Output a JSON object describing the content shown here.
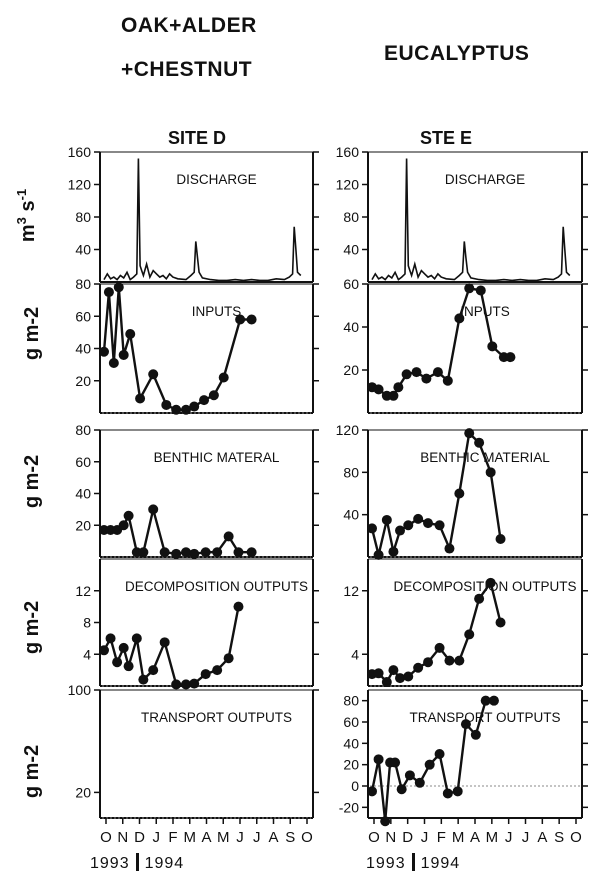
{
  "headers": {
    "left_group_line1": "OAK+ALDER",
    "left_group_line2": "+CHESTNUT",
    "right_group": "EUCALYPTUS",
    "left_site": "SITE D",
    "right_site": "STE E"
  },
  "y_axis_labels": {
    "discharge": "m",
    "discharge_sup1": "3",
    "discharge_tail": "s",
    "discharge_sup2": "-1",
    "inputs": "g m-2",
    "benthic": "g m-2",
    "decomposition": "g m-2",
    "transport": "g m-2"
  },
  "x_axis": {
    "month_labels": [
      "O",
      "N",
      "D",
      "J",
      "F",
      "M",
      "A",
      "M",
      "J",
      "J",
      "A",
      "S",
      "O"
    ],
    "year_left": "1993",
    "year_right": "1994"
  },
  "colors": {
    "line": "#111111",
    "marker": "#111111",
    "zero_line": "#888888"
  },
  "chart_data": [
    {
      "type": "line",
      "site": "D",
      "panel_label": "DISCHARGE",
      "ylim": [
        0,
        160
      ],
      "yticks": [
        40,
        80,
        120,
        160
      ],
      "unit": "m3 s-1",
      "x": [
        0,
        0.2,
        0.4,
        0.6,
        0.8,
        1.0,
        1.2,
        1.4,
        1.6,
        1.8,
        2.0,
        2.1,
        2.2,
        2.3,
        2.4,
        2.6,
        2.8,
        3.0,
        3.2,
        3.4,
        3.6,
        3.8,
        4.0,
        4.2,
        4.5,
        5.0,
        5.3,
        5.5,
        5.6,
        5.7,
        5.8,
        6.0,
        6.5,
        7.0,
        7.5,
        8.0,
        8.5,
        9.0,
        9.5,
        10.0,
        10.5,
        11.0,
        11.3,
        11.5,
        11.6,
        11.7,
        11.8,
        12.0
      ],
      "values": [
        3,
        10,
        4,
        6,
        3,
        8,
        5,
        12,
        3,
        6,
        10,
        152,
        20,
        14,
        8,
        22,
        6,
        14,
        10,
        6,
        8,
        4,
        10,
        6,
        4,
        3,
        8,
        12,
        50,
        30,
        12,
        5,
        3,
        2,
        2,
        3,
        2,
        3,
        2,
        2,
        4,
        3,
        6,
        10,
        68,
        40,
        12,
        8
      ]
    },
    {
      "type": "line",
      "site": "E",
      "panel_label": "DISCHARGE",
      "ylim": [
        0,
        160
      ],
      "yticks": [
        40,
        80,
        120,
        160
      ],
      "unit": "m3 s-1",
      "x": [
        0,
        0.2,
        0.4,
        0.6,
        0.8,
        1.0,
        1.2,
        1.4,
        1.6,
        1.8,
        2.0,
        2.1,
        2.2,
        2.3,
        2.4,
        2.6,
        2.8,
        3.0,
        3.2,
        3.4,
        3.6,
        3.8,
        4.0,
        4.2,
        4.5,
        5.0,
        5.3,
        5.5,
        5.6,
        5.7,
        5.8,
        6.0,
        6.5,
        7.0,
        7.5,
        8.0,
        8.5,
        9.0,
        9.5,
        10.0,
        10.5,
        11.0,
        11.3,
        11.5,
        11.6,
        11.7,
        11.8,
        12.0
      ],
      "values": [
        3,
        10,
        4,
        6,
        3,
        8,
        5,
        12,
        3,
        6,
        10,
        152,
        20,
        14,
        8,
        22,
        6,
        14,
        10,
        6,
        8,
        4,
        10,
        6,
        4,
        3,
        8,
        12,
        50,
        30,
        12,
        5,
        3,
        2,
        2,
        3,
        2,
        3,
        2,
        2,
        4,
        3,
        6,
        10,
        68,
        40,
        12,
        8
      ]
    },
    {
      "type": "line",
      "site": "D",
      "panel_label": "INPUTS",
      "ylim": [
        0,
        80
      ],
      "yticks": [
        20,
        40,
        60,
        80
      ],
      "x": [
        0,
        0.3,
        0.6,
        0.9,
        1.2,
        1.6,
        2.2,
        3.0,
        3.8,
        4.4,
        5.0,
        5.5,
        6.1,
        6.7,
        7.3,
        8.3,
        9.0
      ],
      "values": [
        38,
        75,
        31,
        78,
        36,
        49,
        9,
        24,
        5,
        2,
        2,
        4,
        8,
        11,
        22,
        58,
        58
      ]
    },
    {
      "type": "line",
      "site": "E",
      "panel_label": "INPUTS",
      "ylim": [
        0,
        60
      ],
      "yticks": [
        20,
        40,
        60
      ],
      "x": [
        0,
        0.4,
        0.9,
        1.3,
        1.6,
        2.1,
        2.7,
        3.3,
        4.0,
        4.6,
        5.3,
        5.9,
        6.6,
        7.3,
        8.0,
        8.4
      ],
      "values": [
        12,
        11,
        8,
        8,
        12,
        18,
        19,
        16,
        19,
        15,
        44,
        58,
        57,
        31,
        26,
        26
      ]
    },
    {
      "type": "line",
      "site": "D",
      "panel_label": "BENTHIC MATERAL",
      "ylim": [
        0,
        80
      ],
      "yticks": [
        20,
        40,
        60,
        80
      ],
      "x": [
        0,
        0.4,
        0.8,
        1.2,
        1.5,
        2.0,
        2.4,
        3.0,
        3.7,
        4.4,
        5.0,
        5.5,
        6.2,
        6.9,
        7.6,
        8.2,
        9.0
      ],
      "values": [
        17,
        17,
        17,
        20,
        26,
        3,
        3,
        30,
        3,
        2,
        3,
        2,
        3,
        3,
        13,
        3,
        3
      ]
    },
    {
      "type": "line",
      "site": "E",
      "panel_label": "BENTHIC MATERIAL",
      "ylim": [
        0,
        120
      ],
      "yticks": [
        40,
        80,
        120
      ],
      "x": [
        0,
        0.4,
        0.9,
        1.3,
        1.7,
        2.2,
        2.8,
        3.4,
        4.1,
        4.7,
        5.3,
        5.9,
        6.5,
        7.2,
        7.8
      ],
      "values": [
        27,
        2,
        35,
        5,
        25,
        30,
        36,
        32,
        30,
        8,
        60,
        117,
        108,
        80,
        17
      ]
    },
    {
      "type": "line",
      "site": "D",
      "panel_label": "DECOMPOSITION OUTPUTS",
      "ylim": [
        0,
        16
      ],
      "yticks": [
        4,
        8,
        12
      ],
      "x": [
        0,
        0.4,
        0.8,
        1.2,
        1.5,
        2.0,
        2.4,
        3.0,
        3.7,
        4.4,
        5.0,
        5.5,
        6.2,
        6.9,
        7.6,
        8.2
      ],
      "values": [
        4.5,
        6,
        3,
        4.8,
        2.5,
        6,
        0.8,
        2,
        5.5,
        0.2,
        0.2,
        0.3,
        1.5,
        2,
        3.5,
        10
      ]
    },
    {
      "type": "line",
      "site": "E",
      "panel_label": "DECOMPOSITION OUTPUTS",
      "ylim": [
        0,
        16
      ],
      "yticks": [
        4,
        12
      ],
      "x": [
        0,
        0.4,
        0.9,
        1.3,
        1.7,
        2.2,
        2.8,
        3.4,
        4.1,
        4.7,
        5.3,
        5.9,
        6.5,
        7.2,
        7.8
      ],
      "values": [
        1.5,
        1.6,
        0.5,
        2,
        1,
        1.2,
        2.3,
        3,
        4.8,
        3.2,
        3.2,
        6.5,
        11,
        13,
        8
      ]
    },
    {
      "type": "line",
      "site": "D",
      "panel_label": "TRANSPORT OUTPUTS",
      "ylim": [
        0,
        100
      ],
      "yticks": [
        20,
        100
      ],
      "x": [],
      "values": []
    },
    {
      "type": "line",
      "site": "E",
      "panel_label": "TRANSPORT OUTPUTS",
      "ylim": [
        -30,
        90
      ],
      "yticks": [
        -20,
        0,
        20,
        40,
        60,
        80
      ],
      "x": [
        0,
        0.4,
        0.8,
        1.1,
        1.4,
        1.8,
        2.3,
        2.9,
        3.5,
        4.1,
        4.6,
        5.2,
        5.7,
        6.3,
        6.9,
        7.4
      ],
      "values": [
        -5,
        25,
        -33,
        22,
        22,
        -3,
        10,
        3,
        20,
        30,
        -7,
        -5,
        58,
        48,
        80,
        80
      ]
    }
  ]
}
